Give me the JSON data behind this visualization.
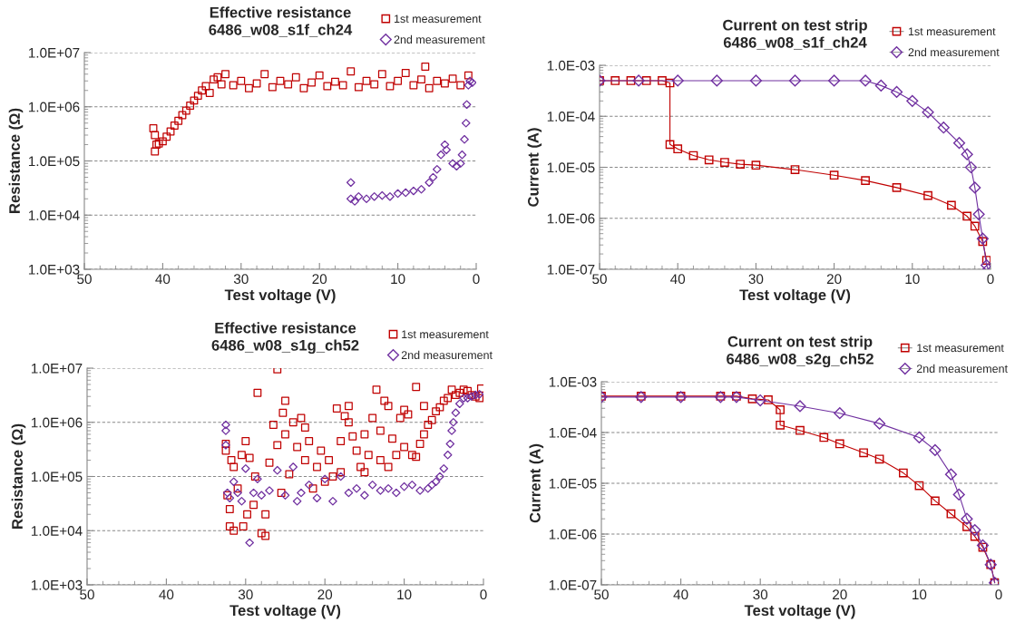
{
  "chart_data": [
    {
      "type": "scatter",
      "title": "Effective resistance",
      "subtitle": "6486_w08_s1f_ch24",
      "xlabel": "Test voltage (V)",
      "ylabel": "Resistance (Ω)",
      "log": "y",
      "grid": "y",
      "legend": "top right",
      "xlim": [
        50,
        0
      ],
      "xticks": [
        50,
        40,
        30,
        20,
        10,
        0
      ],
      "ylim": [
        1000,
        10000000
      ],
      "yticks": [
        {
          "value": 1000,
          "label": "1.0E+03"
        },
        {
          "value": 10000,
          "label": "1.0E+04"
        },
        {
          "value": 100000,
          "label": "1.0E+05"
        },
        {
          "value": 1000000,
          "label": "1.0E+06"
        },
        {
          "value": 10000000,
          "label": "1.0E+07"
        }
      ],
      "series": [
        {
          "name": "1st measurement",
          "color": "#c00000",
          "marker": "square",
          "x": [
            41.2,
            41,
            41,
            40.8,
            40.5,
            40,
            39.5,
            39,
            38.5,
            38,
            37.5,
            37,
            36.5,
            36,
            35.5,
            35,
            34.5,
            34,
            33.5,
            33,
            32.5,
            32,
            31,
            30,
            29,
            28,
            27,
            26,
            25,
            24,
            23,
            22,
            21,
            20,
            19,
            18,
            17,
            16,
            15,
            14,
            13,
            12,
            11,
            10,
            9,
            8,
            7,
            6.5,
            6,
            5,
            4,
            3,
            2,
            1
          ],
          "values": [
            400000,
            300000,
            150000,
            200000,
            210000,
            230000,
            280000,
            350000,
            450000,
            550000,
            700000,
            850000,
            1050000,
            1300000,
            1600000,
            2000000,
            2400000,
            1800000,
            3200000,
            3500000,
            2600000,
            4000000,
            2500000,
            3000000,
            2200000,
            2700000,
            4000000,
            2300000,
            3000000,
            2600000,
            3500000,
            2200000,
            2800000,
            3800000,
            2400000,
            2900000,
            2500000,
            4500000,
            2300000,
            3000000,
            2600000,
            4000000,
            2400000,
            3000000,
            4200000,
            2500000,
            3200000,
            5500000,
            2200000,
            3000000,
            2700000,
            3300000,
            2500000,
            3800000
          ]
        },
        {
          "name": "2nd measurement",
          "color": "#7030a0",
          "marker": "diamond",
          "x": [
            16,
            16,
            15.5,
            15,
            14,
            13,
            12,
            11,
            10,
            9,
            8,
            7,
            6,
            5.5,
            5,
            4.5,
            4,
            3.8,
            3,
            2.5,
            2,
            1.8,
            1.5,
            1.3,
            1.2,
            1,
            0.8,
            0.5
          ],
          "values": [
            40000,
            20000,
            18000,
            22000,
            20000,
            22000,
            23000,
            22000,
            25000,
            26000,
            28000,
            30000,
            40000,
            50000,
            70000,
            130000,
            200000,
            160000,
            90000,
            80000,
            90000,
            130000,
            250000,
            500000,
            1100000,
            2500000,
            3000000,
            2800000
          ]
        }
      ]
    },
    {
      "type": "line",
      "title": "Current on test strip",
      "subtitle": "6486_w08_s1f_ch24",
      "xlabel": "Test voltage (V)",
      "ylabel": "Current (A)",
      "log": "y",
      "grid": "y",
      "legend": "top right",
      "xlim": [
        50,
        0
      ],
      "xticks": [
        50,
        40,
        30,
        20,
        10,
        0
      ],
      "ylim": [
        1e-07,
        0.001
      ],
      "yticks": [
        {
          "value": 1e-07,
          "label": "1.0E-07"
        },
        {
          "value": 1e-06,
          "label": "1.0E-06"
        },
        {
          "value": 1e-05,
          "label": "1.0E-05"
        },
        {
          "value": 0.0001,
          "label": "1.0E-04"
        },
        {
          "value": 0.001,
          "label": "1.0E-03"
        }
      ],
      "series": [
        {
          "name": "1st measurement",
          "color": "#c00000",
          "marker": "square",
          "x": [
            50,
            48,
            46,
            44,
            42,
            41,
            41,
            40,
            38,
            36,
            34,
            32,
            30,
            25,
            20,
            16,
            12,
            8,
            5,
            3,
            2,
            1,
            0.5
          ],
          "values": [
            0.0005,
            0.0005,
            0.0005,
            0.0005,
            0.0005,
            0.00045,
            2.8e-05,
            2.3e-05,
            1.7e-05,
            1.4e-05,
            1.25e-05,
            1.15e-05,
            1.1e-05,
            9e-06,
            7e-06,
            5.5e-06,
            4e-06,
            2.8e-06,
            1.8e-06,
            1.1e-06,
            7e-07,
            3.5e-07,
            1.5e-07
          ]
        },
        {
          "name": "2nd measurement",
          "color": "#7030a0",
          "marker": "diamond",
          "x": [
            50,
            45,
            40,
            35,
            30,
            25,
            20,
            16,
            14,
            12,
            10,
            8,
            6,
            4,
            3,
            2.5,
            2,
            1.5,
            1,
            0.5,
            0.3
          ],
          "values": [
            0.0005,
            0.0005,
            0.0005,
            0.0005,
            0.0005,
            0.0005,
            0.0005,
            0.0005,
            0.0004,
            0.0003,
            0.0002,
            0.00012,
            6e-05,
            3e-05,
            1.8e-05,
            1e-05,
            4e-06,
            1.2e-06,
            4e-07,
            1.2e-07,
            1e-07
          ]
        }
      ]
    },
    {
      "type": "scatter",
      "title": "Effective resistance",
      "subtitle": "6486_w08_s1g_ch52",
      "xlabel": "Test voltage (V)",
      "ylabel": "Resistance (Ω)",
      "log": "y",
      "grid": "y",
      "legend": "top right",
      "xlim": [
        50,
        0
      ],
      "xticks": [
        50,
        40,
        30,
        20,
        10,
        0
      ],
      "ylim": [
        1000,
        10000000
      ],
      "yticks": [
        {
          "value": 1000,
          "label": "1.0E+03"
        },
        {
          "value": 10000,
          "label": "1.0E+04"
        },
        {
          "value": 100000,
          "label": "1.0E+05"
        },
        {
          "value": 1000000,
          "label": "1.0E+06"
        },
        {
          "value": 10000000,
          "label": "1.0E+07"
        }
      ],
      "series": [
        {
          "name": "1st measurement",
          "color": "#c00000",
          "marker": "square",
          "x": [
            32.5,
            32.5,
            32.3,
            32,
            32,
            31.8,
            31.5,
            31.5,
            31,
            30.5,
            30.3,
            30,
            29.8,
            29.5,
            29,
            28.8,
            28.5,
            28,
            27.5,
            27.5,
            27,
            26.5,
            26,
            26,
            25.5,
            25.3,
            25,
            25,
            24.5,
            24,
            23.5,
            23,
            22.5,
            22.5,
            22,
            21.5,
            21,
            20.5,
            20,
            19.5,
            19,
            18.5,
            18,
            18,
            17.5,
            17,
            17,
            16.5,
            16,
            15.5,
            15,
            15,
            14.5,
            14,
            13.5,
            13,
            13,
            12.5,
            12,
            12,
            11.5,
            11,
            10.5,
            10,
            10,
            9.5,
            9,
            8.5,
            8.5,
            8,
            7.5,
            7.5,
            7,
            6.5,
            6,
            5.5,
            5,
            4.5,
            4,
            3.5,
            3,
            2.5,
            2,
            1.5,
            1,
            0.5,
            0.3
          ],
          "values": [
            400000,
            300000,
            45000,
            12000,
            25000,
            200000,
            10000,
            150000,
            60000,
            250000,
            12000,
            450000,
            20000,
            220000,
            30000,
            100000,
            3500000,
            9000,
            8000,
            20000,
            180000,
            900000,
            9500000,
            380000,
            50000,
            1500000,
            2500000,
            600000,
            110000,
            1000000,
            350000,
            1200000,
            800000,
            200000,
            450000,
            60000,
            150000,
            300000,
            80000,
            200000,
            100000,
            1800000,
            450000,
            120000,
            1300000,
            2000000,
            1000000,
            550000,
            300000,
            150000,
            600000,
            120000,
            250000,
            1200000,
            4000000,
            200000,
            700000,
            2500000,
            150000,
            2000000,
            500000,
            250000,
            1200000,
            350000,
            1700000,
            1400000,
            250000,
            230000,
            4500000,
            400000,
            2000000,
            600000,
            900000,
            1100000,
            1600000,
            1900000,
            2500000,
            2800000,
            4000000,
            3200000,
            3500000,
            4000000,
            3800000,
            3200000,
            3000000,
            2800000,
            4200000
          ]
        },
        {
          "name": "2nd measurement",
          "color": "#7030a0",
          "marker": "diamond",
          "x": [
            32.5,
            32.5,
            32.5,
            32.3,
            32,
            31.5,
            31,
            30.5,
            30,
            29.5,
            29,
            28.5,
            28,
            27,
            26,
            25,
            24,
            23.5,
            23,
            22,
            21,
            20,
            19,
            18,
            17,
            16,
            15,
            14,
            13,
            12,
            11,
            10,
            9,
            8,
            7,
            6.5,
            6,
            5.5,
            5,
            4.5,
            4.2,
            4,
            3.8,
            3.5,
            3,
            2.5,
            2,
            1.5,
            1,
            0.5
          ],
          "values": [
            900000,
            700000,
            380000,
            50000,
            40000,
            80000,
            50000,
            35000,
            140000,
            6000,
            50000,
            90000,
            45000,
            55000,
            130000,
            45000,
            150000,
            35000,
            50000,
            70000,
            40000,
            90000,
            35000,
            100000,
            50000,
            60000,
            45000,
            70000,
            55000,
            60000,
            50000,
            65000,
            70000,
            55000,
            60000,
            70000,
            80000,
            100000,
            140000,
            250000,
            400000,
            700000,
            1000000,
            1500000,
            2200000,
            2800000,
            2800000,
            3000000,
            3200000,
            3300000
          ]
        }
      ]
    },
    {
      "type": "line",
      "title": "Current on test strip",
      "subtitle": "6486_w08_s2g_ch52",
      "xlabel": "Test voltage (V)",
      "ylabel": "Current (A)",
      "log": "y",
      "grid": "y",
      "legend": "top right",
      "xlim": [
        50,
        0
      ],
      "xticks": [
        50,
        40,
        30,
        20,
        10,
        0
      ],
      "ylim": [
        1e-07,
        0.001
      ],
      "yticks": [
        {
          "value": 1e-07,
          "label": "1.0E-07"
        },
        {
          "value": 1e-06,
          "label": "1.0E-06"
        },
        {
          "value": 1e-05,
          "label": "1.0E-05"
        },
        {
          "value": 0.0001,
          "label": "1.0E-04"
        },
        {
          "value": 0.001,
          "label": "1.0E-03"
        }
      ],
      "series": [
        {
          "name": "1st measurement",
          "color": "#c00000",
          "marker": "square",
          "x": [
            50,
            45,
            40,
            35,
            33,
            31,
            29,
            27.5,
            27.5,
            25,
            22,
            20,
            17,
            15,
            12,
            10,
            8,
            6,
            4,
            3,
            2,
            1,
            0.5
          ],
          "values": [
            0.00052,
            0.00052,
            0.00052,
            0.00052,
            0.00052,
            0.00046,
            0.00044,
            0.00028,
            0.00014,
            0.00011,
            8e-05,
            6e-05,
            4e-05,
            3e-05,
            1.6e-05,
            9e-06,
            4.5e-06,
            2.5e-06,
            1.4e-06,
            9e-07,
            5.5e-07,
            2.5e-07,
            1.1e-07
          ]
        },
        {
          "name": "2nd measurement",
          "color": "#7030a0",
          "marker": "diamond",
          "x": [
            50,
            45,
            40,
            35,
            33,
            30,
            25,
            20,
            15,
            10,
            8,
            6,
            5,
            4,
            3,
            2,
            1,
            0.5
          ],
          "values": [
            0.0005,
            0.0005,
            0.0005,
            0.0005,
            0.0005,
            0.00043,
            0.00033,
            0.00024,
            0.00015,
            8e-05,
            4.5e-05,
            1.5e-05,
            6e-06,
            2e-06,
            1.2e-06,
            6e-07,
            2.5e-07,
            1.1e-07
          ]
        }
      ]
    }
  ]
}
